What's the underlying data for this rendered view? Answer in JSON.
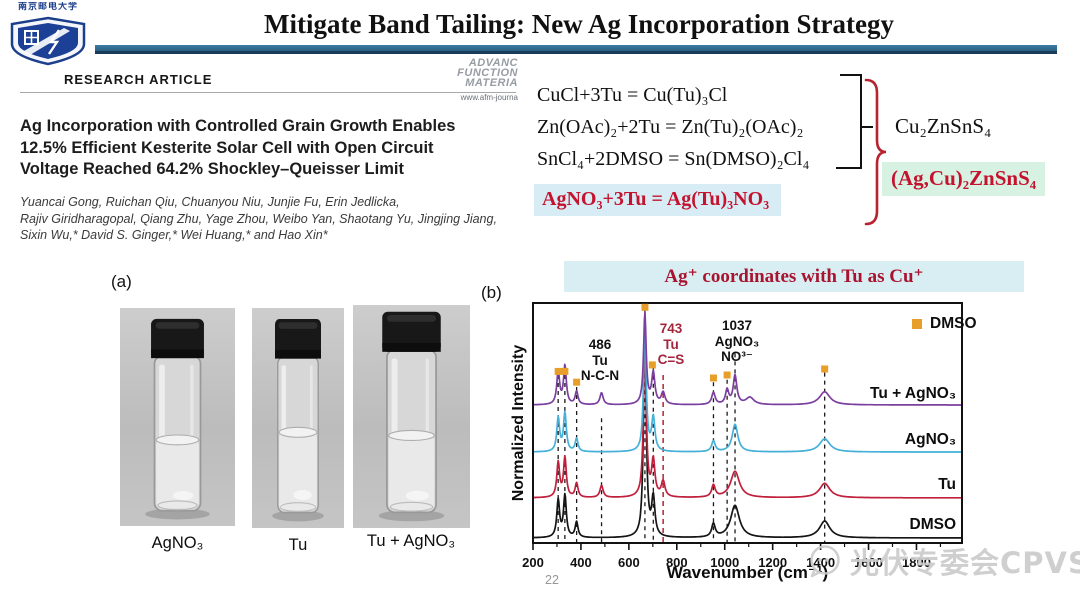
{
  "slide": {
    "title": "Mitigate Band Tailing: New Ag Incorporation Strategy",
    "page_number": "22",
    "watermark": "光伏专委会CPVS"
  },
  "logo": {
    "university_name": "南京邮电大学"
  },
  "article": {
    "kicker": "RESEARCH ARTICLE",
    "journal_name_lines": [
      "ADVANC",
      "FUNCTION",
      "MATERIA"
    ],
    "journal_url": "www.afm-journa",
    "title_lines": [
      "Ag Incorporation with Controlled Grain Growth Enables",
      "12.5% Efficient Kesterite Solar Cell with Open Circuit",
      "Voltage Reached 64.2% Shockley–Queisser Limit"
    ],
    "author_lines": [
      "Yuancai Gong, Ruichan Qiu, Chuanyou Niu, Junjie Fu, Erin Jedlicka,",
      "Rajiv Giridharagopal, Qiang Zhu, Yage Zhou, Weibo Yan, Shaotang Yu, Jingjing Jiang,",
      "Sixin Wu,* David S. Ginger,* Wei Huang,* and Hao Xin*"
    ]
  },
  "equations": {
    "lines": [
      "CuCl+3Tu = Cu(Tu)₃Cl",
      "Zn(OAc)₂+2Tu = Zn(Tu)₂(OAc)₂",
      "SnCl₄+2DMSO = Sn(DMSO)₂Cl₄"
    ],
    "highlighted": "AgNO₃+3Tu = Ag(Tu)₃NO₃",
    "product_black": "Cu₂ZnSnS₄",
    "product_red": "(Ag,Cu)₂ZnSnS₄"
  },
  "panel_a": {
    "label": "(a)",
    "vial_labels": [
      "AgNO₃",
      "Tu",
      "Tu + AgNO₃"
    ]
  },
  "panel_b": {
    "label": "(b)"
  },
  "chart_data": {
    "type": "line",
    "title": "Ag⁺ coordinates with Tu as Cu⁺",
    "xlabel": "Wavenumber (cm⁻¹)",
    "ylabel": "Normalized Intensity",
    "xlim": [
      200,
      1990
    ],
    "xticks": [
      200,
      400,
      600,
      800,
      1000,
      1200,
      1400,
      1600,
      1800
    ],
    "grid": false,
    "legend": [
      {
        "label": "DMSO",
        "marker": "square",
        "color": "#e89f2a"
      }
    ],
    "series": [
      {
        "name": "DMSO",
        "color": "#151515",
        "offset": 0.021,
        "peaks": [
          [
            305,
            0.155,
            7
          ],
          [
            333,
            0.175,
            7
          ],
          [
            382,
            0.065,
            7
          ],
          [
            667,
            0.9,
            6.5
          ],
          [
            702,
            0.16,
            8
          ],
          [
            953,
            0.055,
            9
          ],
          [
            1043,
            0.135,
            22
          ],
          [
            1417,
            0.07,
            26
          ]
        ]
      },
      {
        "name": "Tu",
        "color": "#c0203c",
        "offset": 0.188,
        "peaks": [
          [
            305,
            0.145,
            7
          ],
          [
            333,
            0.165,
            7
          ],
          [
            382,
            0.06,
            7
          ],
          [
            486,
            0.05,
            8
          ],
          [
            667,
            0.68,
            6.5
          ],
          [
            702,
            0.15,
            8
          ],
          [
            743,
            0.065,
            9
          ],
          [
            953,
            0.05,
            9
          ],
          [
            1043,
            0.11,
            22
          ],
          [
            1417,
            0.06,
            26
          ]
        ]
      },
      {
        "name": "AgNO₃",
        "color": "#45b0d8",
        "offset": 0.379,
        "peaks": [
          [
            305,
            0.14,
            7
          ],
          [
            333,
            0.16,
            7
          ],
          [
            382,
            0.055,
            7
          ],
          [
            667,
            0.52,
            6.5
          ],
          [
            702,
            0.14,
            8
          ],
          [
            953,
            0.045,
            9
          ],
          [
            1043,
            0.115,
            14
          ],
          [
            1417,
            0.055,
            26
          ]
        ]
      },
      {
        "name": "Tu + AgNO₃",
        "color": "#7b3fa0",
        "offset": 0.575,
        "peaks": [
          [
            305,
            0.14,
            7
          ],
          [
            333,
            0.16,
            7
          ],
          [
            382,
            0.055,
            7
          ],
          [
            486,
            0.05,
            8
          ],
          [
            667,
            0.38,
            6.5
          ],
          [
            702,
            0.13,
            8
          ],
          [
            743,
            0.05,
            9
          ],
          [
            953,
            0.05,
            9
          ],
          [
            1010,
            0.06,
            8
          ],
          [
            1043,
            0.12,
            9
          ],
          [
            1105,
            0.03,
            20
          ],
          [
            1417,
            0.055,
            26
          ]
        ]
      }
    ],
    "guides": {
      "black": [
        [
          305,
          0.3
        ],
        [
          333,
          0.3
        ],
        [
          382,
          0.35
        ],
        [
          486,
          0.48
        ],
        [
          667,
          0.03
        ],
        [
          702,
          0.27
        ],
        [
          953,
          0.33
        ],
        [
          1010,
          0.32
        ],
        [
          1043,
          0.21
        ],
        [
          1417,
          0.29
        ]
      ],
      "red": [
        [
          743,
          0.3
        ]
      ]
    },
    "markers": [
      [
        305,
        0.285
      ],
      [
        333,
        0.285
      ],
      [
        382,
        0.33
      ],
      [
        667,
        0.018
      ],
      [
        698,
        0.258
      ],
      [
        953,
        0.3125
      ],
      [
        1010,
        0.3
      ],
      [
        1417,
        0.275
      ]
    ],
    "annotations": [
      {
        "x": 486,
        "color": "#111111",
        "lines": [
          "486",
          "Tu",
          "N-C-N"
        ]
      },
      {
        "x": 743,
        "color": "#a3263c",
        "lines": [
          "743",
          "Tu",
          "C=S"
        ]
      },
      {
        "x": 1037,
        "color": "#111111",
        "lines": [
          "1037",
          "AgNO₃",
          "NO³⁻"
        ]
      }
    ],
    "colors": {
      "accent_orange": "#e89f2a",
      "dark_red": "#a3263c",
      "highlight_cyan": "#d8ecf5",
      "highlight_green": "#d7f1e2",
      "title_rule_blue": "#2a5f84"
    }
  }
}
